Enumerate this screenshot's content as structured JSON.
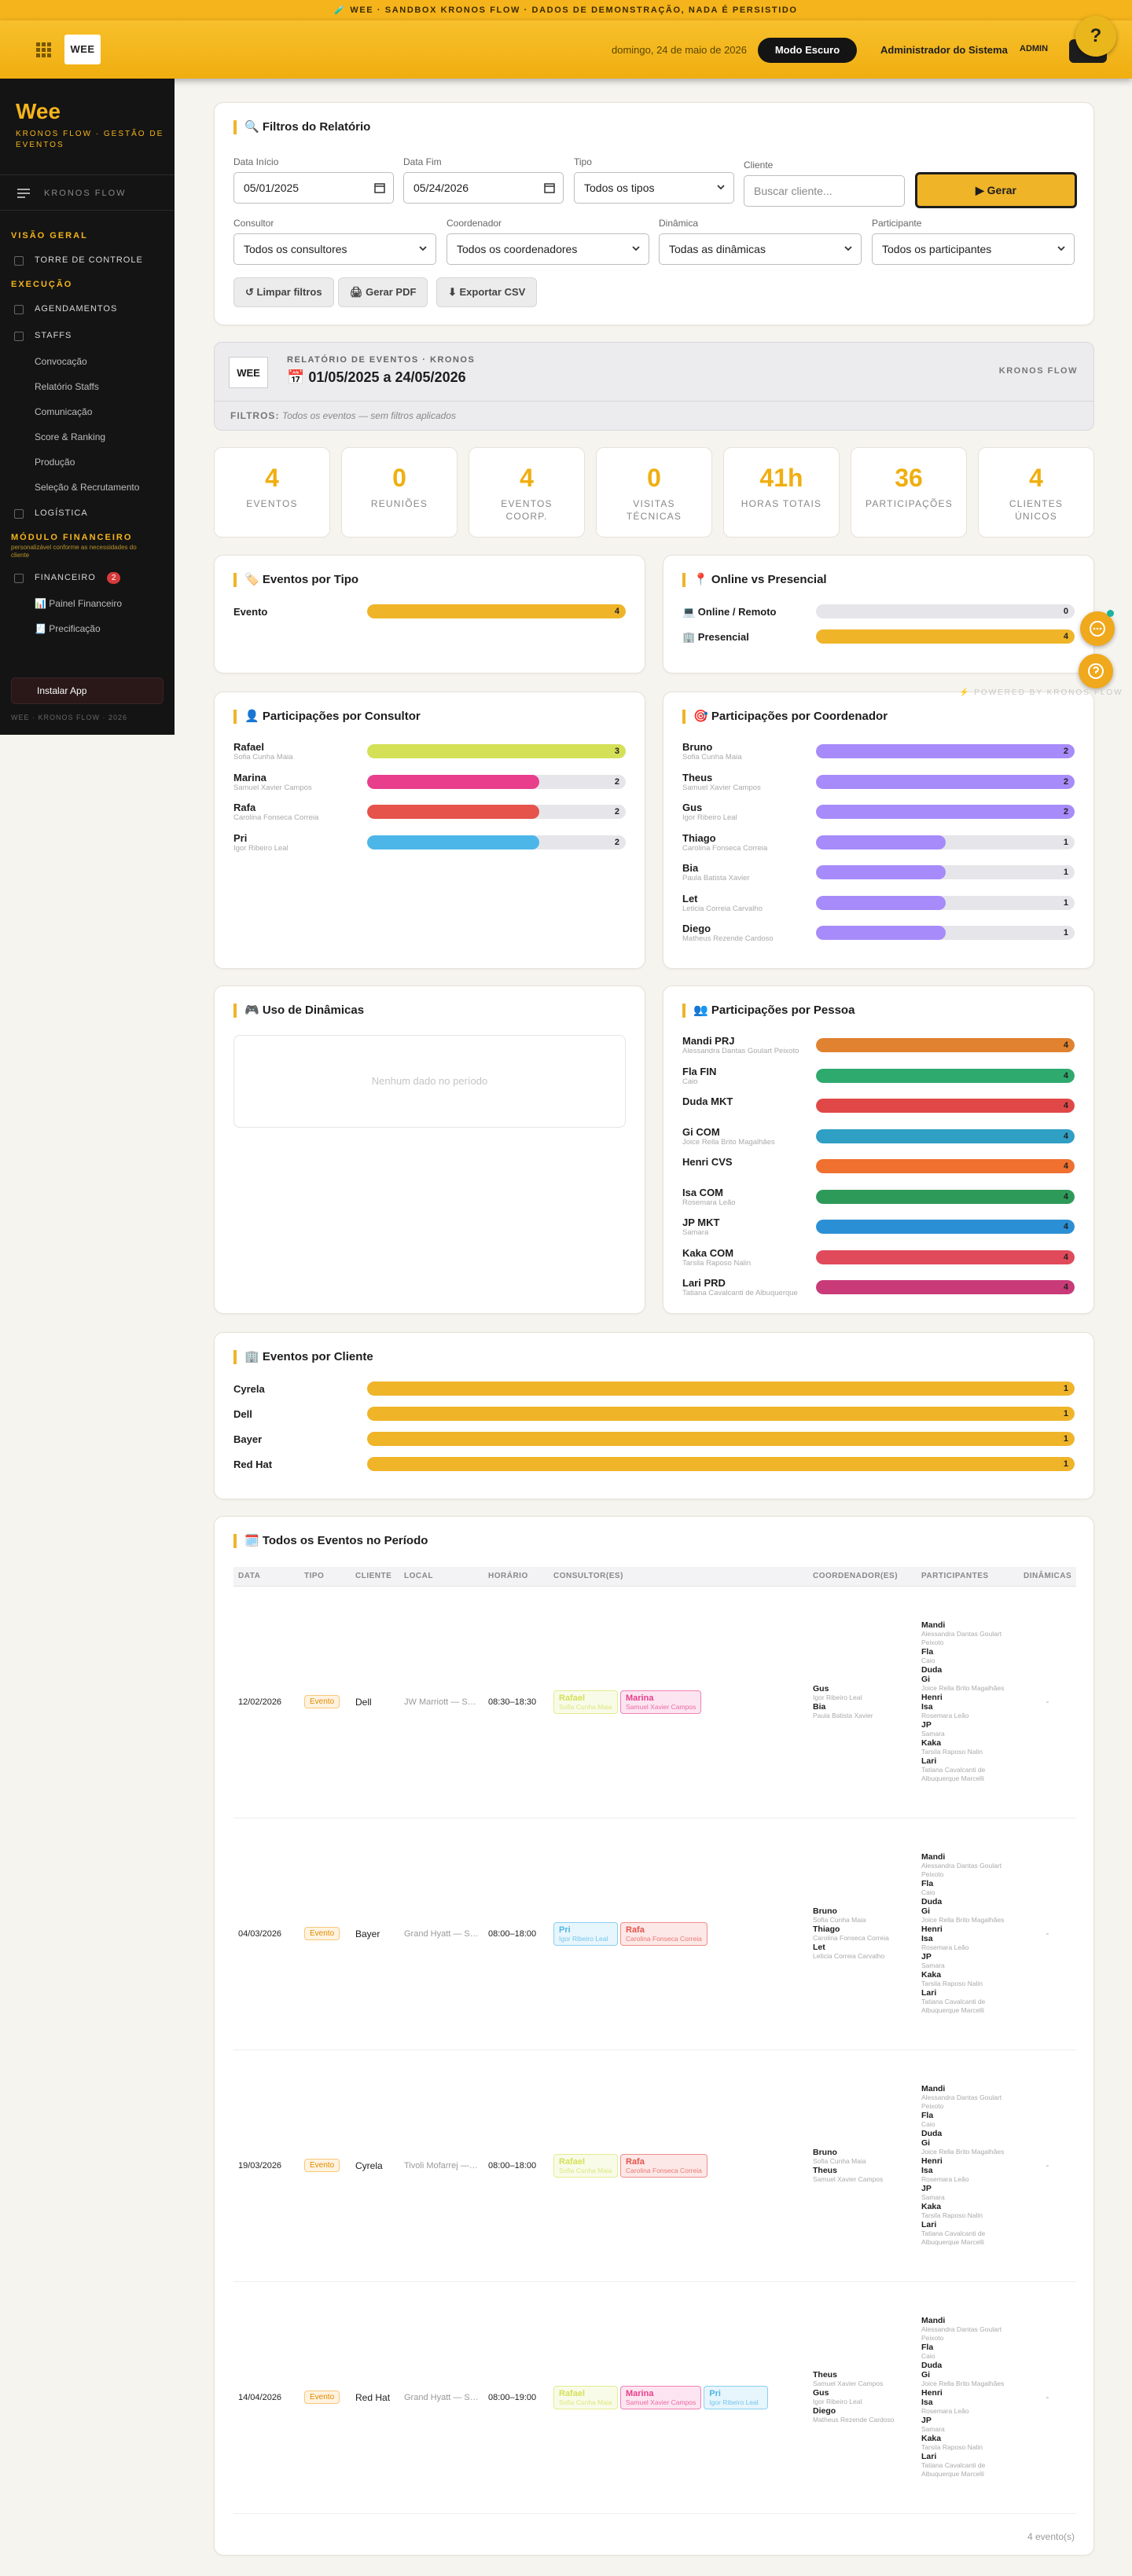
{
  "banner": "🧪 WEE · SANDBOX KRONOS FLOW · DADOS DE DEMONSTRAÇÃO, NADA É PERSISTIDO",
  "help": "?",
  "header": {
    "logo": "WEE",
    "date": "domingo, 24 de maio de 2026",
    "dark_mode": "Modo Escuro",
    "user": "Administrador do Sistema",
    "role": "ADMIN"
  },
  "sidebar": {
    "brand": "Wee",
    "tagline": "KRONOS FLOW · GESTÃO DE EVENTOS",
    "menu_title": "KRONOS FLOW",
    "sections": [
      {
        "title": "VISÃO GERAL",
        "items": [
          {
            "label": "TORRE DE CONTROLE"
          }
        ]
      },
      {
        "title": "EXECUÇÃO",
        "items": [
          {
            "label": "AGENDAMENTOS"
          },
          {
            "label": "STAFFS",
            "subitems": [
              "Convocação",
              "Relatório Staffs",
              "Comunicação",
              "Score & Ranking",
              "Produção",
              "Seleção & Recrutamento"
            ]
          },
          {
            "label": "LOGÍSTICA"
          }
        ]
      },
      {
        "title": "MÓDULO FINANCEIRO",
        "note": "personalizável conforme as necessidades do cliente",
        "items": [
          {
            "label": "FINANCEIRO",
            "badge": "2",
            "subitems": [
              "📊 Painel Financeiro",
              "🧾 Precificação"
            ]
          }
        ]
      }
    ],
    "install": "Instalar App",
    "footer": "WEE · KRONOS FLOW · 2026"
  },
  "filters": {
    "title": "🔍 Filtros do Relatório",
    "row1": [
      {
        "label": "Data Início",
        "value": "05/01/2025"
      },
      {
        "label": "Data Fim",
        "value": "05/24/2026"
      },
      {
        "label": "Tipo",
        "value": "Todos os tipos"
      },
      {
        "label": "Cliente",
        "placeholder": "Buscar cliente..."
      }
    ],
    "generate": "▶ Gerar",
    "row2": [
      {
        "label": "Consultor",
        "value": "Todos os consultores"
      },
      {
        "label": "Coordenador",
        "value": "Todos os coordenadores"
      },
      {
        "label": "Dinâmica",
        "value": "Todas as dinâmicas"
      },
      {
        "label": "Participante",
        "value": "Todos os participantes"
      }
    ],
    "actions": [
      "↺ Limpar filtros",
      "🖨 Gerar PDF",
      "⬇ Exportar CSV"
    ]
  },
  "report": {
    "logo": "WEE",
    "kicker": "RELATÓRIO DE EVENTOS · KRONOS",
    "period": "📅 01/05/2025 a 24/05/2026",
    "brand": "KRONOS FLOW",
    "filters_label": "FILTROS:",
    "filters_text": "Todos os eventos — sem filtros aplicados"
  },
  "kpis": [
    {
      "value": "4",
      "label": "EVENTOS"
    },
    {
      "value": "0",
      "label": "REUNIÕES"
    },
    {
      "value": "4",
      "label": "EVENTOS COORP."
    },
    {
      "value": "0",
      "label": "VISITAS TÉCNICAS"
    },
    {
      "value": "41h",
      "label": "HORAS TOTAIS"
    },
    {
      "value": "36",
      "label": "PARTICIPAÇÕES"
    },
    {
      "value": "4",
      "label": "CLIENTES ÚNICOS"
    }
  ],
  "powered": "⚡ POWERED BY KRONOS FLOW",
  "charts": [
    {
      "type": "bar",
      "title": "🏷️ Eventos por Tipo",
      "categories": [
        "Evento"
      ],
      "values": [
        4
      ],
      "colors": [
        "#f0b429"
      ]
    },
    {
      "type": "bar",
      "title": "📍 Online vs Presencial",
      "categories": [
        "💻 Online / Remoto",
        "🏢 Presencial"
      ],
      "values": [
        0,
        4
      ],
      "colors": [
        "#3b82f6",
        "#f0b429"
      ]
    },
    {
      "type": "bar",
      "title": "👤 Participações por Consultor",
      "categories": [
        "Rafael",
        "Marina",
        "Rafa",
        "Pri"
      ],
      "subtitles": [
        "Sofia Cunha Maia",
        "Samuel Xavier Campos",
        "Carolina Fonseca Correia",
        "Igor Ribeiro Leal"
      ],
      "values": [
        3,
        2,
        2,
        2
      ],
      "colors": [
        "#d4e157",
        "#e83e8c",
        "#e5534b",
        "#4db6e8"
      ]
    },
    {
      "type": "bar",
      "title": "🎯 Participações por Coordenador",
      "categories": [
        "Bruno",
        "Theus",
        "Gus",
        "Thiago",
        "Bia",
        "Let",
        "Diego"
      ],
      "subtitles": [
        "Sofia Cunha Maia",
        "Samuel Xavier Campos",
        "Igor Ribeiro Leal",
        "Carolina Fonseca Correia",
        "Paula Batista Xavier",
        "Leticia Correia Carvalho",
        "Matheus Rezende Cardoso"
      ],
      "values": [
        2,
        2,
        2,
        1,
        1,
        1,
        1
      ],
      "colors": [
        "#a78bfa",
        "#a78bfa",
        "#a78bfa",
        "#a78bfa",
        "#a78bfa",
        "#a78bfa",
        "#a78bfa"
      ]
    },
    {
      "type": "bar",
      "title": "🎮 Uso de Dinâmicas",
      "categories": [],
      "values": [],
      "empty": "Nenhum dado no período"
    },
    {
      "type": "bar",
      "title": "👥 Participações por Pessoa",
      "categories": [
        "Mandi PRJ",
        "Fla FIN",
        "Duda MKT",
        "Gi COM",
        "Henri CVS",
        "Isa COM",
        "JP MKT",
        "Kaka COM",
        "Lari PRD"
      ],
      "subtitles": [
        "Alessandra Dantas Goulart Peixoto",
        "Caio",
        null,
        "Joice Rella Brito Magalhães",
        null,
        "Rosemara Leão",
        "Samara",
        "Tarsila Raposo Nalin",
        "Tatiana Cavalcanti de Albuquerque"
      ],
      "values": [
        4,
        4,
        4,
        4,
        4,
        4,
        4,
        4,
        4
      ],
      "colors": [
        "#e0822f",
        "#2eaa6e",
        "#e04848",
        "#2f9fc4",
        "#f07030",
        "#2e9a5a",
        "#2b8fd6",
        "#e04a5a",
        "#c83a78"
      ]
    },
    {
      "type": "bar",
      "title": "🏢 Eventos por Cliente",
      "categories": [
        "Cyrela",
        "Dell",
        "Bayer",
        "Red Hat"
      ],
      "values": [
        1,
        1,
        1,
        1
      ],
      "colors": [
        "#f0b429",
        "#f0b429",
        "#f0b429",
        "#f0b429"
      ]
    }
  ],
  "table": {
    "title": "🗓️ Todos os Eventos no Período",
    "columns": [
      "DATA",
      "TIPO",
      "CLIENTE",
      "LOCAL",
      "HORÁRIO",
      "CONSULTOR(ES)",
      "COORDENADOR(ES)",
      "PARTICIPANTES",
      "DINÂMICAS"
    ],
    "rows": [
      {
        "date": "12/02/2026",
        "type": "Evento",
        "client": "Dell",
        "location": "JW Marriott — São…",
        "time": "08:30–18:30",
        "consultants": [
          {
            "name": "Rafael",
            "full": "Sofia Cunha Maia"
          },
          {
            "name": "Marina",
            "full": "Samuel Xavier Campos"
          }
        ],
        "coordinators": [
          {
            "name": "Gus",
            "full": "Igor Ribeiro Leal"
          },
          {
            "name": "Bia",
            "full": "Paula Batista Xavier"
          }
        ],
        "participants": [
          {
            "name": "Mandi",
            "full": "Alessandra Dantas Goulart Peixoto"
          },
          {
            "name": "Fla",
            "full": "Caio"
          },
          {
            "name": "Duda"
          },
          {
            "name": "Gi",
            "full": "Joice Rella Brito Magalhães"
          },
          {
            "name": "Henri"
          },
          {
            "name": "Isa",
            "full": "Rosemara Leão"
          },
          {
            "name": "JP",
            "full": "Samara"
          },
          {
            "name": "Kaka",
            "full": "Tarsila Raposo Nalin"
          },
          {
            "name": "Lari",
            "full": "Tatiana Cavalcanti de Albuquerque Marcelli"
          }
        ],
        "dynamics": "-"
      },
      {
        "date": "04/03/2026",
        "type": "Evento",
        "client": "Bayer",
        "location": "Grand Hyatt — São…",
        "time": "08:00–18:00",
        "consultants": [
          {
            "name": "Pri",
            "full": "Igor Ribeiro Leal"
          },
          {
            "name": "Rafa",
            "full": "Carolina Fonseca Correia"
          }
        ],
        "coordinators": [
          {
            "name": "Bruno",
            "full": "Sofia Cunha Maia"
          },
          {
            "name": "Thiago",
            "full": "Carolina Fonseca Correia"
          },
          {
            "name": "Let",
            "full": "Leticia Correia Carvalho"
          }
        ],
        "participants": [
          {
            "name": "Mandi",
            "full": "Alessandra Dantas Goulart Peixoto"
          },
          {
            "name": "Fla",
            "full": "Caio"
          },
          {
            "name": "Duda"
          },
          {
            "name": "Gi",
            "full": "Joice Rella Brito Magalhães"
          },
          {
            "name": "Henri"
          },
          {
            "name": "Isa",
            "full": "Rosemara Leão"
          },
          {
            "name": "JP",
            "full": "Samara"
          },
          {
            "name": "Kaka",
            "full": "Tarsila Raposo Nalin"
          },
          {
            "name": "Lari",
            "full": "Tatiana Cavalcanti de Albuquerque Marcelli"
          }
        ],
        "dynamics": "-"
      },
      {
        "date": "19/03/2026",
        "type": "Evento",
        "client": "Cyrela",
        "location": "Tivoli Mofarrej — S…",
        "time": "08:00–18:00",
        "consultants": [
          {
            "name": "Rafael",
            "full": "Sofia Cunha Maia"
          },
          {
            "name": "Rafa",
            "full": "Carolina Fonseca Correia"
          }
        ],
        "coordinators": [
          {
            "name": "Bruno",
            "full": "Sofia Cunha Maia"
          },
          {
            "name": "Theus",
            "full": "Samuel Xavier Campos"
          }
        ],
        "participants": [
          {
            "name": "Mandi",
            "full": "Alessandra Dantas Goulart Peixoto"
          },
          {
            "name": "Fla",
            "full": "Caio"
          },
          {
            "name": "Duda"
          },
          {
            "name": "Gi",
            "full": "Joice Rella Brito Magalhães"
          },
          {
            "name": "Henri"
          },
          {
            "name": "Isa",
            "full": "Rosemara Leão"
          },
          {
            "name": "JP",
            "full": "Samara"
          },
          {
            "name": "Kaka",
            "full": "Tarsila Raposo Nalin"
          },
          {
            "name": "Lari",
            "full": "Tatiana Cavalcanti de Albuquerque Marcelli"
          }
        ],
        "dynamics": "-"
      },
      {
        "date": "14/04/2026",
        "type": "Evento",
        "client": "Red Hat",
        "location": "Grand Hyatt — São…",
        "time": "08:00–19:00",
        "consultants": [
          {
            "name": "Rafael",
            "full": "Sofia Cunha Maia"
          },
          {
            "name": "Marina",
            "full": "Samuel Xavier Campos"
          },
          {
            "name": "Pri",
            "full": "Igor Ribeiro Leal"
          }
        ],
        "coordinators": [
          {
            "name": "Theus",
            "full": "Samuel Xavier Campos"
          },
          {
            "name": "Gus",
            "full": "Igor Ribeiro Leal"
          },
          {
            "name": "Diego",
            "full": "Matheus Rezende Cardoso"
          }
        ],
        "participants": [
          {
            "name": "Mandi",
            "full": "Alessandra Dantas Goulart Peixoto"
          },
          {
            "name": "Fla",
            "full": "Caio"
          },
          {
            "name": "Duda"
          },
          {
            "name": "Gi",
            "full": "Joice Rella Brito Magalhães"
          },
          {
            "name": "Henri"
          },
          {
            "name": "Isa",
            "full": "Rosemara Leão"
          },
          {
            "name": "JP",
            "full": "Samara"
          },
          {
            "name": "Kaka",
            "full": "Tarsila Raposo Nalin"
          },
          {
            "name": "Lari",
            "full": "Tatiana Cavalcanti de Albuquerque Marcelli"
          }
        ],
        "dynamics": "-"
      }
    ],
    "footer": "4 evento(s)"
  }
}
